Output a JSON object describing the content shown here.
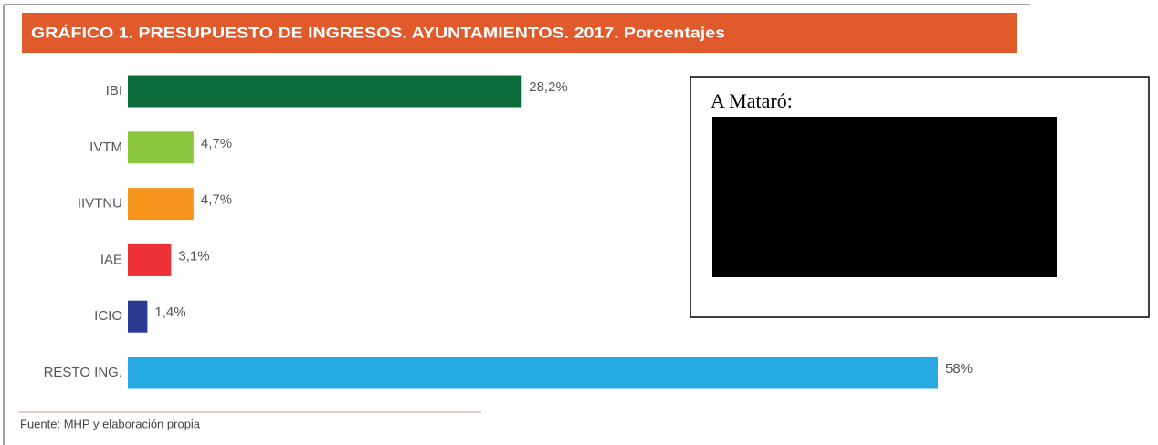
{
  "chart_data": {
    "type": "bar",
    "orientation": "horizontal",
    "title": "GRÁFICO 1. PRESUPUESTO DE INGRESOS. AYUNTAMIENTOS. 2017. Porcentajes",
    "categories": [
      "IBI",
      "IVTM",
      "IIVTNU",
      "IAE",
      "ICIO",
      "RESTO ING."
    ],
    "values": [
      28.2,
      4.7,
      4.7,
      3.1,
      1.4,
      58
    ],
    "value_labels": [
      "28,2%",
      "4,7%",
      "4,7%",
      "3,1%",
      "1,4%",
      "58%"
    ],
    "colors": [
      "#0b6b3a",
      "#8dc63f",
      "#f7941d",
      "#ed3237",
      "#2b3990",
      "#27aae1"
    ],
    "source": "Fuente: MHP y elaboración propia"
  },
  "overlay": {
    "label": "A Mataró:"
  }
}
